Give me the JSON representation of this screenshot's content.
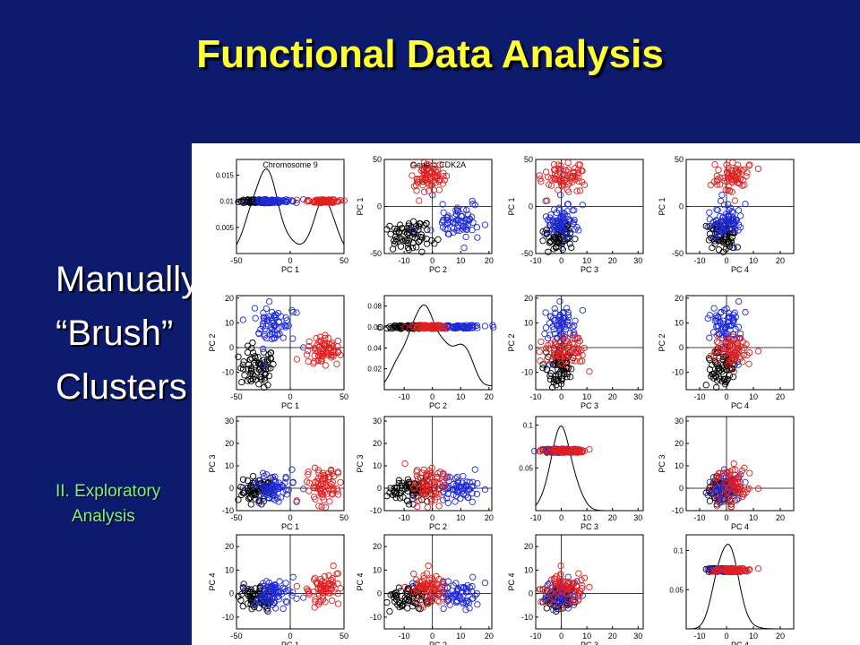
{
  "slide": {
    "title": "Functional Data Analysis",
    "bullets": [
      "Manually",
      "“Brush”",
      "Clusters"
    ],
    "side_note": [
      "II. Exploratory",
      "Analysis"
    ]
  },
  "colors": {
    "background": "#0d1b6e",
    "title": "#ffff33",
    "bullet_text": "#ffffff",
    "side_note": "#7ff07f",
    "cluster_black": "#000000",
    "cluster_blue": "#1f2bd6",
    "cluster_red": "#e02020"
  },
  "chart_data": {
    "type": "scatter",
    "layout": "4x4 scatterplot matrix, density curves on diagonal",
    "panel_titles": [
      {
        "row": 0,
        "col": 0,
        "text": "Chromosome 9"
      },
      {
        "row": 0,
        "col": 1,
        "text": "Gene = CDK2A"
      }
    ],
    "axes": {
      "x": [
        {
          "label": "PC 1",
          "ticks": [
            -50,
            0,
            50
          ],
          "range": [
            -50,
            50
          ]
        },
        {
          "label": "PC 2",
          "ticks": [
            -10,
            0,
            10,
            20
          ],
          "range": [
            -17,
            21
          ]
        },
        {
          "label": "PC 3",
          "ticks": [
            -10,
            0,
            10,
            20,
            30
          ],
          "range": [
            -10,
            32
          ]
        },
        {
          "label": "PC 4",
          "ticks": [
            -10,
            0,
            10,
            20
          ],
          "range": [
            -15,
            25
          ]
        }
      ],
      "y": [
        {
          "label": "PC 1",
          "ticks": [
            -50,
            0,
            50
          ],
          "range": [
            -50,
            50
          ]
        },
        {
          "label": "PC 2",
          "ticks": [
            -10,
            0,
            10,
            20
          ],
          "range": [
            -17,
            21
          ]
        },
        {
          "label": "PC 3",
          "ticks": [
            -10,
            0,
            10,
            20,
            30
          ],
          "range": [
            -10,
            32
          ]
        },
        {
          "label": "PC 4",
          "ticks": [
            -10,
            0,
            10,
            20
          ],
          "range": [
            -15,
            25
          ]
        }
      ]
    },
    "diagonal_density": [
      {
        "ticks": [
          0.005,
          0.01,
          0.015
        ],
        "range": [
          0,
          0.018
        ],
        "strip_level": 0.01
      },
      {
        "ticks": [
          0.02,
          0.04,
          0.06,
          0.08
        ],
        "range": [
          0,
          0.09
        ],
        "strip_level": 0.06
      },
      {
        "ticks": [
          0.05,
          0.1
        ],
        "range": [
          0,
          0.11
        ],
        "strip_level": 0.07
      },
      {
        "ticks": [
          0.05,
          0.1
        ],
        "range": [
          0,
          0.12
        ],
        "strip_level": 0.075
      }
    ],
    "series": [
      {
        "color": "black",
        "center": [
          -30,
          -8,
          -1,
          -2
        ],
        "spread": [
          8,
          4,
          3,
          3
        ],
        "n": 70
      },
      {
        "color": "blue",
        "center": [
          -15,
          10,
          0,
          0
        ],
        "spread": [
          10,
          5,
          3,
          3
        ],
        "n": 70
      },
      {
        "color": "red",
        "center": [
          30,
          -2,
          2,
          2
        ],
        "spread": [
          9,
          3,
          5,
          3
        ],
        "n": 70
      }
    ]
  }
}
